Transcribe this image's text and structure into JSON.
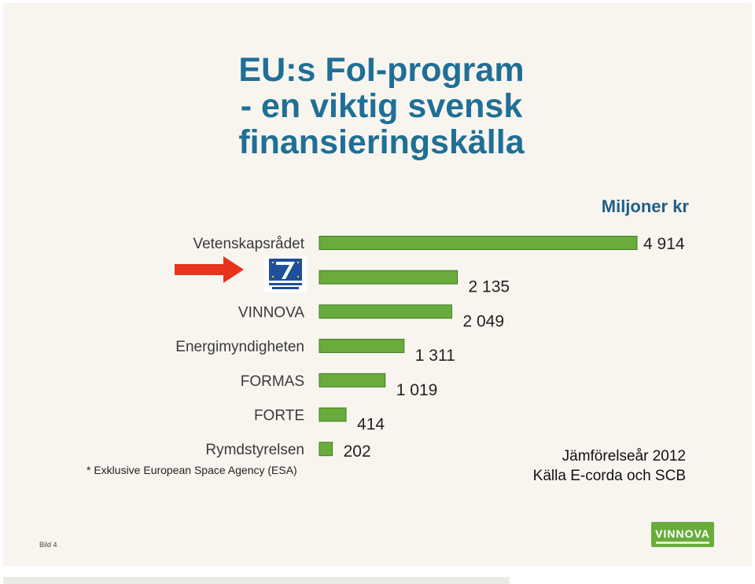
{
  "title_lines": [
    "EU:s FoI-program",
    "- en viktig svensk",
    "finansieringskälla"
  ],
  "unit_label": "Miljoner kr",
  "footnote": "* Exklusive European Space Agency (ESA)",
  "source_lines": [
    "Jämförelseår 2012",
    "Källa E-corda och SCB"
  ],
  "slide_number": "Bild 4",
  "logo_text": "VINNOVA",
  "colors": {
    "bar": "#6aac3c",
    "bar_border": "#3f7a22",
    "arrow": "#e8321c",
    "title": "#1f6f96"
  },
  "chart_data": {
    "type": "bar",
    "orientation": "horizontal",
    "categories": [
      "Vetenskapsrådet",
      "",
      "VINNOVA",
      "Energimyndigheten",
      "FORMAS",
      "FORTE",
      "Rymdstyrelsen"
    ],
    "values": [
      4914,
      2135,
      2049,
      1311,
      1019,
      414,
      202
    ],
    "value_labels": [
      "4 914",
      "2 135",
      "2 049",
      "1 311",
      "1 019",
      "414",
      "202"
    ],
    "highlight_index": 1,
    "ylabel": "Miljoner kr",
    "xlim": [
      0,
      4914
    ]
  }
}
